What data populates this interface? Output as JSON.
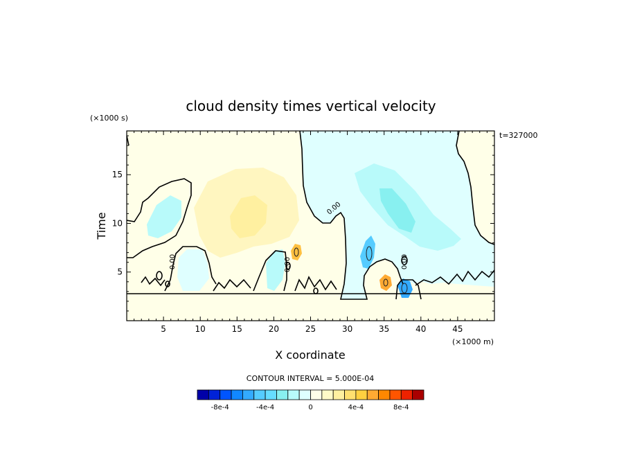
{
  "chart_data": {
    "type": "heatmap",
    "title": "cloud density times vertical velocity",
    "xlabel": "X coordinate",
    "ylabel": "Time",
    "x_unit": "(×1000 m)",
    "y_unit": "(×1000 s)",
    "time_label": "t=327000",
    "xlim": [
      0,
      50
    ],
    "ylim": [
      0,
      19.5
    ],
    "x_ticks": [
      5,
      10,
      15,
      20,
      25,
      30,
      35,
      40,
      45
    ],
    "y_ticks": [
      5,
      10,
      15
    ],
    "zero_contour_label": "0.00",
    "contour_interval_label": "CONTOUR INTERVAL = 5.000E-04",
    "colorbar": {
      "levels": [
        -0.001,
        -0.0009,
        -0.0008,
        -0.0007,
        -0.0006,
        -0.0005,
        -0.0004,
        -0.0003,
        -0.0002,
        -0.0001,
        0,
        0.0001,
        0.0002,
        0.0003,
        0.0004,
        0.0005,
        0.0006,
        0.0007,
        0.0008,
        0.0009,
        0.001
      ],
      "tick_labels": [
        "-8e-4",
        "-4e-4",
        "0",
        "4e-4",
        "8e-4"
      ],
      "tick_values": [
        -0.0008,
        -0.0004,
        0,
        0.0004,
        0.0008
      ]
    },
    "colors": {
      "neg_deep": "#0000a8",
      "neg_mid": "#33aaff",
      "neg_light": "#88f0f0",
      "neg_pale": "#dfffff",
      "pos_pale": "#ffffe8",
      "pos_light": "#fff0a0",
      "pos_mid": "#ffaa33",
      "pos_deep": "#aa0000"
    }
  },
  "colorbar_colors": [
    "#0000a8",
    "#0022d8",
    "#0055ff",
    "#1188ff",
    "#33aaff",
    "#55ccff",
    "#66ddff",
    "#88f0f0",
    "#b8fafa",
    "#dfffff",
    "#ffffe8",
    "#fffac8",
    "#fff0a0",
    "#ffe070",
    "#ffd040",
    "#ffaa33",
    "#ff8800",
    "#ff5500",
    "#ee2200",
    "#aa0000"
  ],
  "regions": [
    {
      "name": "upper-right-positive-zone",
      "color": "#ffffe8"
    },
    {
      "name": "upper-left-positive-zone",
      "color": "#ffffe8"
    },
    {
      "name": "central-yellow-patch",
      "color": "#fff6c0"
    },
    {
      "name": "central-yellow-core",
      "color": "#fff0a0"
    },
    {
      "name": "orange-spot-23km",
      "color": "#ffc040"
    },
    {
      "name": "cyan-band-diagonal",
      "color": "#b8fafa"
    },
    {
      "name": "cyan-core-diagonal",
      "color": "#88f0f0"
    },
    {
      "name": "blue-core-33km",
      "color": "#55ccff"
    },
    {
      "name": "blue-core-38km",
      "color": "#33aaff"
    },
    {
      "name": "left-cyan-cell",
      "color": "#b8fafa"
    },
    {
      "name": "mid-cyan-cell-7km",
      "color": "#dfffff"
    },
    {
      "name": "mid-cyan-cell-20km",
      "color": "#b8fafa"
    },
    {
      "name": "orange-spot-35km",
      "color": "#ffaa33"
    }
  ]
}
